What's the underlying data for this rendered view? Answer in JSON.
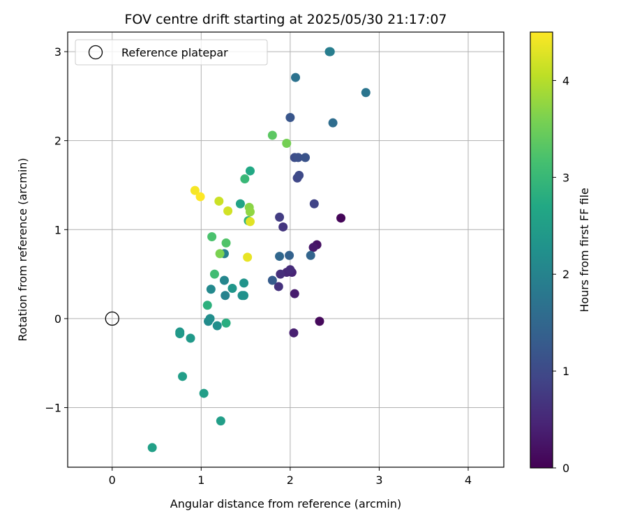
{
  "chart_data": {
    "type": "scatter",
    "title": "FOV centre drift starting at 2025/05/30 21:17:07",
    "xlabel": "Angular distance from reference (arcmin)",
    "ylabel": "Rotation from reference (arcmin)",
    "xlim": [
      -0.5,
      4.4
    ],
    "ylim": [
      -1.67,
      3.22
    ],
    "xticks": [
      0,
      1,
      2,
      3,
      4
    ],
    "xtick_labels": [
      "0",
      "1",
      "2",
      "3",
      "4"
    ],
    "yticks": [
      -1,
      0,
      1,
      2,
      3
    ],
    "ytick_labels": [
      "−1",
      "0",
      "1",
      "2",
      "3"
    ],
    "grid": true,
    "legend": {
      "placement": "top-left",
      "label": "Reference platepar"
    },
    "reference_point": {
      "x": 0,
      "y": 0
    },
    "colorbar": {
      "label": "Hours from first FF file",
      "colormap": "viridis",
      "range": [
        0,
        4.5
      ],
      "ticks": [
        0,
        1,
        2,
        3,
        4
      ],
      "tick_labels": [
        "0",
        "1",
        "2",
        "3",
        "4"
      ]
    },
    "points": [
      {
        "x": 2.57,
        "y": 1.13,
        "c": 0.05
      },
      {
        "x": 2.33,
        "y": -0.03,
        "c": 0.1
      },
      {
        "x": 2.3,
        "y": 0.83,
        "c": 0.2
      },
      {
        "x": 2.26,
        "y": 0.8,
        "c": 0.3
      },
      {
        "x": 2.05,
        "y": 0.28,
        "c": 0.35
      },
      {
        "x": 2.04,
        "y": -0.16,
        "c": 0.4
      },
      {
        "x": 2.02,
        "y": 0.52,
        "c": 0.45
      },
      {
        "x": 1.96,
        "y": 0.52,
        "c": 0.5
      },
      {
        "x": 2.0,
        "y": 0.55,
        "c": 0.55
      },
      {
        "x": 1.89,
        "y": 0.5,
        "c": 0.6
      },
      {
        "x": 1.87,
        "y": 0.36,
        "c": 0.65
      },
      {
        "x": 1.92,
        "y": 1.03,
        "c": 0.7
      },
      {
        "x": 1.88,
        "y": 1.14,
        "c": 0.8
      },
      {
        "x": 2.27,
        "y": 1.29,
        "c": 0.9
      },
      {
        "x": 2.08,
        "y": 1.58,
        "c": 0.95
      },
      {
        "x": 2.1,
        "y": 1.61,
        "c": 1.0
      },
      {
        "x": 2.05,
        "y": 1.81,
        "c": 1.05
      },
      {
        "x": 2.09,
        "y": 1.81,
        "c": 1.1
      },
      {
        "x": 2.17,
        "y": 1.81,
        "c": 1.15
      },
      {
        "x": 2.0,
        "y": 2.26,
        "c": 1.2
      },
      {
        "x": 1.8,
        "y": 0.43,
        "c": 1.3
      },
      {
        "x": 1.99,
        "y": 0.71,
        "c": 1.4
      },
      {
        "x": 2.23,
        "y": 0.71,
        "c": 1.45
      },
      {
        "x": 1.88,
        "y": 0.7,
        "c": 1.5
      },
      {
        "x": 2.48,
        "y": 2.2,
        "c": 1.6
      },
      {
        "x": 2.06,
        "y": 2.71,
        "c": 1.7
      },
      {
        "x": 2.85,
        "y": 2.54,
        "c": 1.75
      },
      {
        "x": 2.44,
        "y": 3.0,
        "c": 1.85
      },
      {
        "x": 2.45,
        "y": 3.0,
        "c": 1.9
      },
      {
        "x": 1.26,
        "y": 0.73,
        "c": 1.95
      },
      {
        "x": 1.27,
        "y": 0.26,
        "c": 2.0
      },
      {
        "x": 1.26,
        "y": 0.43,
        "c": 2.05
      },
      {
        "x": 1.11,
        "y": 0.33,
        "c": 2.1
      },
      {
        "x": 1.08,
        "y": -0.03,
        "c": 2.15
      },
      {
        "x": 1.1,
        "y": 0.0,
        "c": 2.2
      },
      {
        "x": 1.18,
        "y": -0.08,
        "c": 2.2
      },
      {
        "x": 1.46,
        "y": 0.26,
        "c": 2.25
      },
      {
        "x": 1.48,
        "y": 0.26,
        "c": 2.25
      },
      {
        "x": 1.48,
        "y": 0.4,
        "c": 2.3
      },
      {
        "x": 1.35,
        "y": 0.34,
        "c": 2.35
      },
      {
        "x": 0.76,
        "y": -0.15,
        "c": 2.35
      },
      {
        "x": 0.76,
        "y": -0.17,
        "c": 2.4
      },
      {
        "x": 0.88,
        "y": -0.22,
        "c": 2.4
      },
      {
        "x": 0.79,
        "y": -0.65,
        "c": 2.5
      },
      {
        "x": 1.03,
        "y": -0.84,
        "c": 2.5
      },
      {
        "x": 1.22,
        "y": -1.15,
        "c": 2.5
      },
      {
        "x": 0.45,
        "y": -1.45,
        "c": 2.55
      },
      {
        "x": 1.44,
        "y": 1.29,
        "c": 2.6
      },
      {
        "x": 1.55,
        "y": 1.66,
        "c": 2.7
      },
      {
        "x": 1.28,
        "y": -0.05,
        "c": 2.8
      },
      {
        "x": 1.07,
        "y": 0.15,
        "c": 2.85
      },
      {
        "x": 1.53,
        "y": 1.1,
        "c": 2.9
      },
      {
        "x": 1.49,
        "y": 1.57,
        "c": 3.0
      },
      {
        "x": 1.15,
        "y": 0.5,
        "c": 3.1
      },
      {
        "x": 1.12,
        "y": 0.92,
        "c": 3.2
      },
      {
        "x": 1.28,
        "y": 0.85,
        "c": 3.25
      },
      {
        "x": 1.8,
        "y": 2.06,
        "c": 3.35
      },
      {
        "x": 1.96,
        "y": 1.97,
        "c": 3.55
      },
      {
        "x": 1.21,
        "y": 0.73,
        "c": 3.6
      },
      {
        "x": 1.54,
        "y": 1.25,
        "c": 3.7
      },
      {
        "x": 1.55,
        "y": 1.2,
        "c": 3.75
      },
      {
        "x": 1.2,
        "y": 1.32,
        "c": 4.15
      },
      {
        "x": 1.3,
        "y": 1.21,
        "c": 4.2
      },
      {
        "x": 1.55,
        "y": 1.09,
        "c": 4.3
      },
      {
        "x": 1.52,
        "y": 0.69,
        "c": 4.35
      },
      {
        "x": 0.93,
        "y": 1.44,
        "c": 4.45
      },
      {
        "x": 0.99,
        "y": 1.37,
        "c": 4.5
      }
    ]
  }
}
